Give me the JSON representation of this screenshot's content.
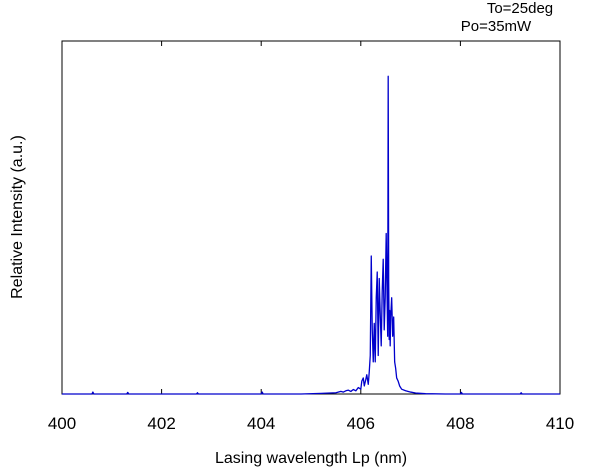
{
  "chart_data": {
    "type": "line",
    "title": "",
    "xlabel": "Lasing wavelength Lp (nm)",
    "ylabel": "Relative Intensity (a.u.)",
    "xlim": [
      400,
      410
    ],
    "ylim": [
      0,
      1.1
    ],
    "x_ticks": [
      "400",
      "402",
      "404",
      "406",
      "408",
      "410"
    ],
    "annotations": [
      "To=25deg",
      "Po=35mW"
    ],
    "grid": false,
    "legend": "none",
    "series": [
      {
        "color": "#0000cc",
        "x": [
          400.0,
          400.6,
          400.62,
          400.64,
          401.0,
          401.3,
          401.32,
          401.34,
          402.0,
          402.7,
          402.72,
          402.74,
          403.5,
          404.0,
          404.02,
          404.04,
          404.8,
          405.2,
          405.5,
          405.6,
          405.65,
          405.7,
          405.75,
          405.8,
          405.85,
          405.9,
          405.95,
          406.0,
          406.02,
          406.05,
          406.07,
          406.1,
          406.12,
          406.15,
          406.17,
          406.19,
          406.21,
          406.23,
          406.25,
          406.27,
          406.29,
          406.31,
          406.33,
          406.35,
          406.37,
          406.39,
          406.41,
          406.43,
          406.45,
          406.47,
          406.49,
          406.51,
          406.53,
          406.54,
          406.55,
          406.56,
          406.57,
          406.58,
          406.59,
          406.6,
          406.62,
          406.64,
          406.66,
          406.68,
          406.7,
          406.72,
          406.75,
          406.78,
          406.82,
          406.9,
          407.0,
          407.1,
          407.3,
          407.7,
          408.0,
          408.02,
          408.04,
          408.6,
          409.2,
          409.22,
          409.24,
          410.0
        ],
        "y": [
          0.0,
          0.0,
          0.006,
          0.0,
          0.0,
          0.0,
          0.005,
          0.0,
          0.0,
          0.0,
          0.004,
          0.0,
          0.0,
          0.0,
          0.006,
          0.0,
          0.0,
          0.002,
          0.004,
          0.008,
          0.006,
          0.01,
          0.012,
          0.008,
          0.014,
          0.01,
          0.02,
          0.015,
          0.04,
          0.05,
          0.025,
          0.045,
          0.06,
          0.03,
          0.07,
          0.12,
          0.43,
          0.2,
          0.1,
          0.22,
          0.1,
          0.3,
          0.38,
          0.12,
          0.36,
          0.25,
          0.15,
          0.32,
          0.42,
          0.2,
          0.3,
          0.5,
          0.28,
          0.18,
          0.99,
          0.35,
          0.17,
          0.26,
          0.15,
          0.24,
          0.3,
          0.18,
          0.24,
          0.1,
          0.08,
          0.05,
          0.04,
          0.025,
          0.015,
          0.01,
          0.006,
          0.003,
          0.001,
          0.0,
          0.0,
          0.005,
          0.0,
          0.0,
          0.0,
          0.004,
          0.0,
          0.0
        ]
      }
    ]
  }
}
